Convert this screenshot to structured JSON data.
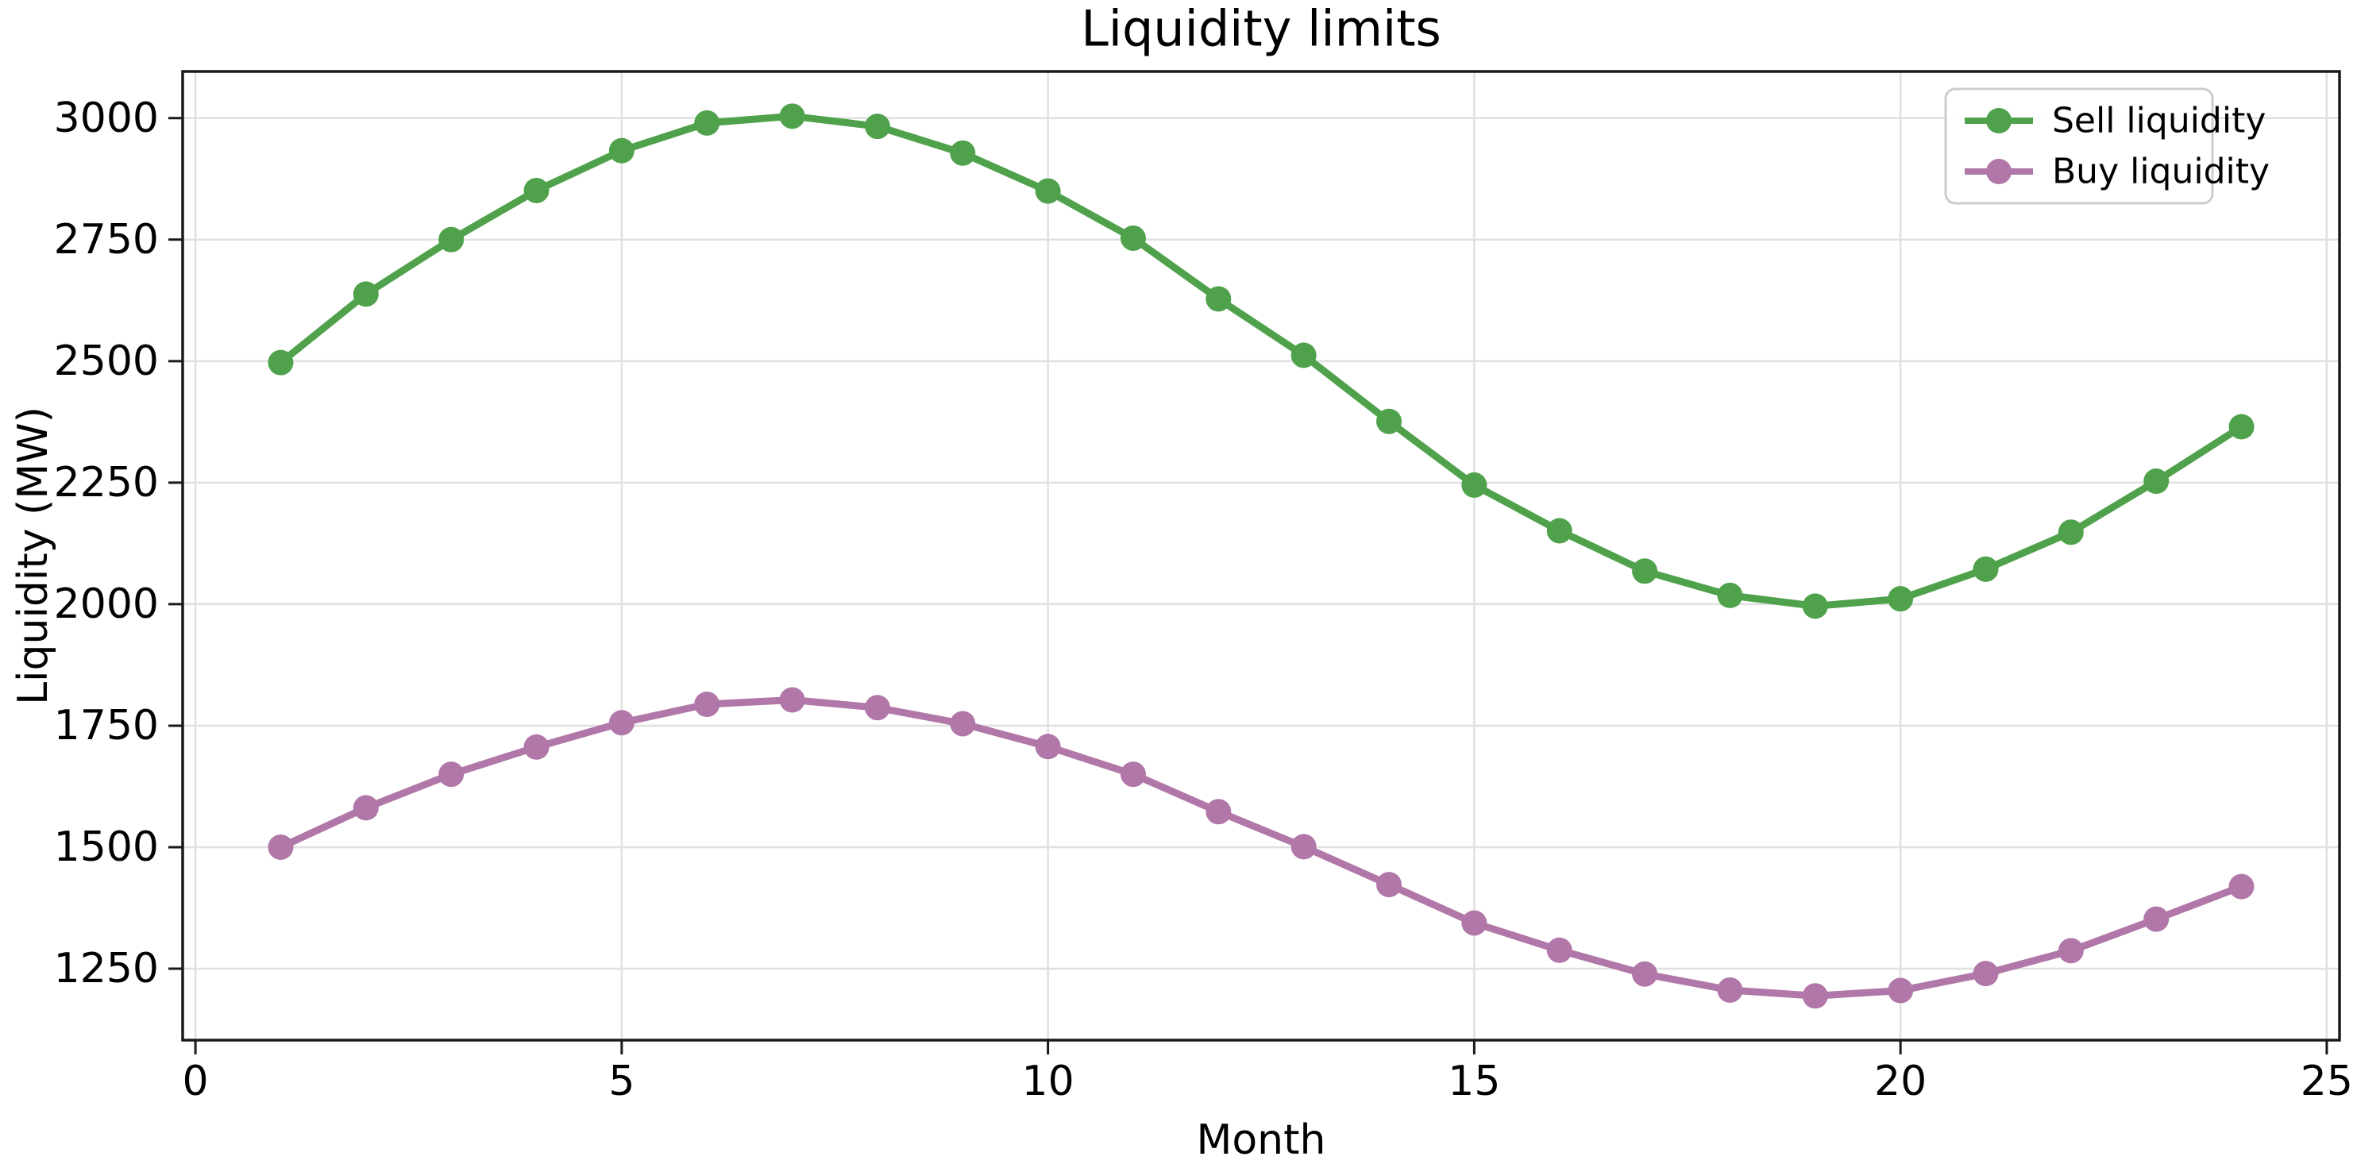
{
  "chart_data": {
    "type": "line",
    "title": "Liquidity limits",
    "xlabel": "Month",
    "ylabel": "Liquidity (MW)",
    "x": [
      1,
      2,
      3,
      4,
      5,
      6,
      7,
      8,
      9,
      10,
      11,
      12,
      13,
      14,
      15,
      16,
      17,
      18,
      19,
      20,
      21,
      22,
      23,
      24
    ],
    "series": [
      {
        "name": "Sell liquidity",
        "color": "#4fa24b",
        "values": [
          2497,
          2638,
          2750,
          2851,
          2933,
          2990,
          3004,
          2983,
          2928,
          2850,
          2753,
          2628,
          2512,
          2376,
          2245,
          2151,
          2068,
          2018,
          1996,
          2011,
          2072,
          2148,
          2253,
          2365
        ]
      },
      {
        "name": "Buy liquidity",
        "color": "#b177a8",
        "values": [
          1500,
          1581,
          1650,
          1706,
          1756,
          1794,
          1803,
          1787,
          1754,
          1707,
          1650,
          1573,
          1501,
          1423,
          1344,
          1288,
          1239,
          1206,
          1194,
          1205,
          1240,
          1287,
          1352,
          1419
        ]
      }
    ],
    "xlim": [
      -0.15,
      25.15
    ],
    "ylim": [
      1103,
      3096
    ],
    "xticks": [
      0,
      5,
      10,
      15,
      20,
      25
    ],
    "yticks": [
      1250,
      1500,
      1750,
      2000,
      2250,
      2500,
      2750,
      3000
    ],
    "grid": true,
    "legend_position": "upper right",
    "colors": {
      "grid": "#e0e0e0",
      "spine": "#1a1a1a",
      "background": "#ffffff"
    }
  }
}
